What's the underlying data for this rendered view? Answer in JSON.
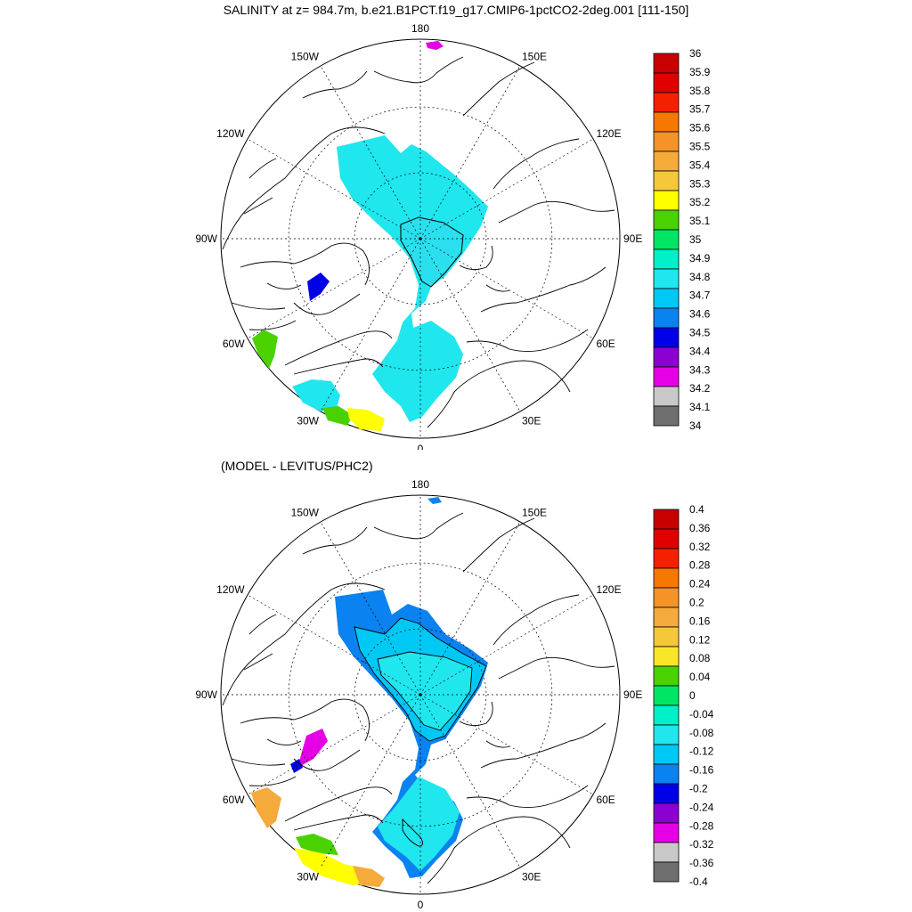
{
  "title": "SALINITY at z= 984.7m, b.e21.B1PCT.f19_g17.CMIP6-1pctCO2-2deg.001 [111-150]",
  "subtitle": "(MODEL - LEVITUS/PHC2)",
  "longitude_labels": [
    "180",
    "150E",
    "120E",
    "90E",
    "60E",
    "30E",
    "0",
    "30W",
    "60W",
    "90W",
    "120W",
    "150W"
  ],
  "colorbar_top": {
    "labels": [
      "36",
      "35.9",
      "35.8",
      "35.7",
      "35.6",
      "35.5",
      "35.4",
      "35.3",
      "35.2",
      "35.1",
      "35",
      "34.9",
      "34.8",
      "34.7",
      "34.6",
      "34.5",
      "34.4",
      "34.3",
      "34.2",
      "34.1",
      "34"
    ],
    "colors": [
      "#c80000",
      "#e00000",
      "#f52000",
      "#f57800",
      "#f59228",
      "#f5aa3c",
      "#f5c83c",
      "#ffff00",
      "#4ad200",
      "#00e664",
      "#00f0c8",
      "#20e6ee",
      "#00c8f5",
      "#0a82f0",
      "#0000e6",
      "#8c00d2",
      "#e600e6",
      "#c8c8c8",
      "#6e6e6e"
    ]
  },
  "colorbar_bottom": {
    "labels": [
      "0.4",
      "0.36",
      "0.32",
      "0.28",
      "0.24",
      "0.2",
      "0.16",
      "0.12",
      "0.08",
      "0.04",
      "0",
      "-0.04",
      "-0.08",
      "-0.12",
      "-0.16",
      "-0.2",
      "-0.24",
      "-0.28",
      "-0.32",
      "-0.36",
      "-0.4"
    ],
    "colors": [
      "#c80000",
      "#e00000",
      "#f52000",
      "#f57800",
      "#f59228",
      "#f5aa3c",
      "#f5c83c",
      "#fae628",
      "#4ad200",
      "#00e664",
      "#00f0c8",
      "#20e6ee",
      "#00c8f5",
      "#0a82f0",
      "#0000e6",
      "#8c00d2",
      "#e600e6",
      "#c8c8c8",
      "#6e6e6e"
    ]
  },
  "map_colors": {
    "ocean_main_top": "#20e6ee",
    "ocean_light_top": "#2adfee",
    "ocean_blue": "#0000e6",
    "ocean_green": "#4ad200",
    "ocean_yellow": "#ffff00",
    "ocean_main_bottom": "#20e6ee",
    "ocean_mid_bottom": "#00c8f5",
    "ocean_dark_bottom": "#0a82f0",
    "magenta": "#e600e6",
    "orange": "#f5aa3c",
    "gold": "#f5c83c"
  }
}
